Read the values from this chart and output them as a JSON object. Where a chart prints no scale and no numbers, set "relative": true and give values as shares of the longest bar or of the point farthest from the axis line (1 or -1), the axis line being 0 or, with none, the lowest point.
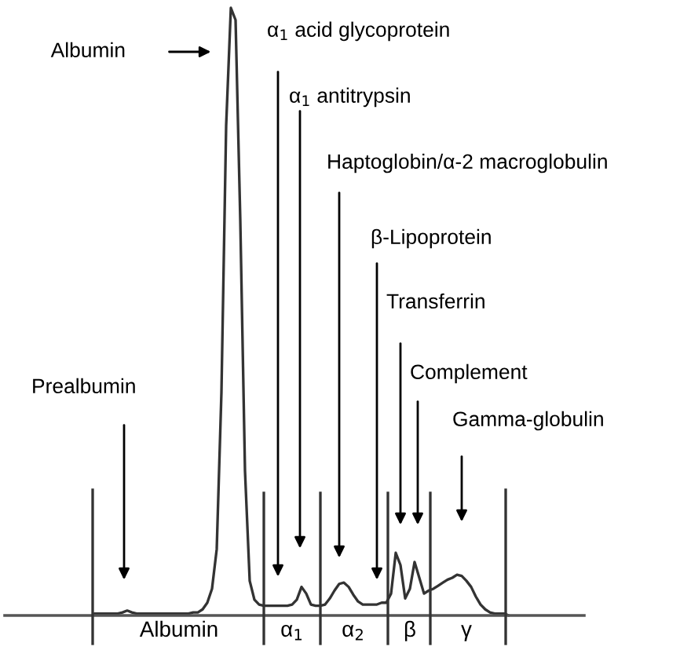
{
  "chart_data": {
    "type": "line",
    "relative": true,
    "color": "#333333",
    "marker": "none",
    "line_style": "solid",
    "categories": [
      null,
      null,
      null,
      null,
      null,
      null,
      null,
      null,
      null,
      null,
      null,
      null,
      null,
      null,
      null,
      null,
      null,
      null,
      "Albumin",
      null,
      null,
      null,
      null,
      null,
      null,
      null,
      null,
      null,
      null,
      null,
      null,
      null,
      null,
      null,
      null,
      null,
      null,
      null,
      null,
      null,
      null,
      null,
      "α$_{1}$",
      null,
      null,
      null,
      null,
      null,
      null,
      null,
      null,
      null,
      null,
      null,
      null,
      "α$_{2}$",
      null,
      null,
      null,
      null,
      null,
      null,
      null,
      null,
      null,
      null,
      null,
      "β",
      null,
      null,
      null,
      null,
      null,
      null,
      null,
      null,
      null,
      null,
      null,
      "γ",
      null,
      null,
      null,
      null,
      null,
      null,
      null,
      null,
      null
    ],
    "values": [
      0.003,
      0.003,
      0.003,
      0.003,
      0.003,
      0.003,
      0.005,
      0.008,
      0.005,
      0.003,
      0.003,
      0.003,
      0.003,
      0.003,
      0.003,
      0.003,
      0.003,
      0.003,
      0.003,
      0.003,
      0.003,
      0.005,
      0.005,
      0.01,
      0.021,
      0.044,
      0.109,
      0.367,
      0.806,
      1.0,
      0.98,
      0.651,
      0.238,
      0.057,
      0.026,
      0.018,
      0.016,
      0.016,
      0.016,
      0.016,
      0.016,
      0.016,
      0.018,
      0.026,
      0.047,
      0.036,
      0.018,
      0.016,
      0.016,
      0.018,
      0.028,
      0.041,
      0.052,
      0.054,
      0.047,
      0.034,
      0.023,
      0.018,
      0.018,
      0.018,
      0.018,
      0.021,
      0.021,
      0.036,
      0.103,
      0.083,
      0.028,
      0.044,
      0.088,
      0.062,
      0.036,
      0.041,
      0.044,
      0.049,
      0.054,
      0.059,
      0.062,
      0.067,
      0.065,
      0.057,
      0.047,
      0.031,
      0.018,
      0.01,
      0.005,
      0.003,
      0.003,
      0.003,
      0.0
    ],
    "annotations": [
      "Albumin",
      "Prealbumin",
      "α$_{1}$ acid glycoprotein",
      "α$_{1}$ antitrypsin",
      "Haptoglobin/α-2 macroglobulin",
      "β-Lipoprotein",
      "Transferrin",
      "Complement",
      "Gamma-globulin"
    ]
  }
}
